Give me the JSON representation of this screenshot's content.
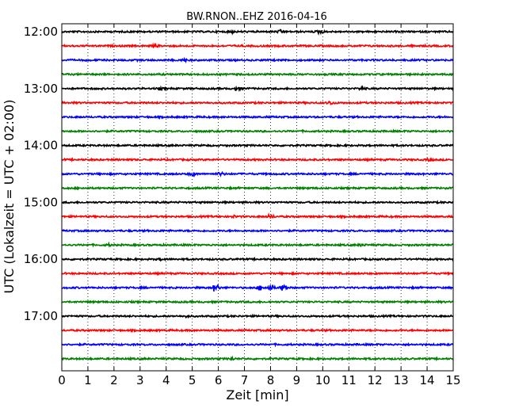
{
  "chart_data": {
    "type": "line",
    "title": "BW.RNON..EHZ 2016-04-16",
    "xlabel": "Zeit  [min]",
    "ylabel": "UTC (Lokalzeit = UTC + 02:00)",
    "xlim": [
      0,
      15
    ],
    "x_ticks": [
      0,
      1,
      2,
      3,
      4,
      5,
      6,
      7,
      8,
      9,
      10,
      11,
      12,
      13,
      14,
      15
    ],
    "x_tick_labels": [
      "0",
      "1",
      "2",
      "3",
      "4",
      "5",
      "6",
      "7",
      "8",
      "9",
      "10",
      "11",
      "12",
      "13",
      "14",
      "15"
    ],
    "y_tick_labels": [
      "12:00",
      "13:00",
      "14:00",
      "15:00",
      "16:00",
      "17:00"
    ],
    "y_ticks_trace_index": [
      0,
      4,
      8,
      12,
      16,
      20
    ],
    "grid": true,
    "trace_interval_min": 15,
    "trace_colors": [
      "#000000",
      "#ff0000",
      "#0000ff",
      "#008000"
    ],
    "traces": [
      {
        "start": "12:00",
        "events": [
          {
            "x": 9.9,
            "amp": 0.35
          },
          {
            "x": 8.4,
            "amp": 0.25
          },
          {
            "x": 6.5,
            "amp": 0.2
          }
        ]
      },
      {
        "start": "12:15",
        "events": [
          {
            "x": 3.6,
            "amp": 0.2
          }
        ]
      },
      {
        "start": "12:30",
        "events": [
          {
            "x": 4.7,
            "amp": 0.2
          }
        ]
      },
      {
        "start": "12:45",
        "events": []
      },
      {
        "start": "13:00",
        "events": [
          {
            "x": 6.7,
            "amp": 0.25
          },
          {
            "x": 11.5,
            "amp": 0.25
          },
          {
            "x": 3.8,
            "amp": 0.15
          }
        ]
      },
      {
        "start": "13:15",
        "events": [
          {
            "x": 10.3,
            "amp": 0.3
          }
        ]
      },
      {
        "start": "13:30",
        "events": []
      },
      {
        "start": "13:45",
        "events": []
      },
      {
        "start": "14:00",
        "events": []
      },
      {
        "start": "14:15",
        "events": [
          {
            "x": 14.1,
            "amp": 0.2
          }
        ]
      },
      {
        "start": "14:30",
        "events": [
          {
            "x": 5.0,
            "amp": 0.3
          },
          {
            "x": 6.1,
            "amp": 0.3
          }
        ]
      },
      {
        "start": "14:45",
        "events": []
      },
      {
        "start": "15:00",
        "events": []
      },
      {
        "start": "15:15",
        "events": [
          {
            "x": 8.0,
            "amp": 0.35
          },
          {
            "x": 6.6,
            "amp": 0.15
          }
        ]
      },
      {
        "start": "15:30",
        "events": []
      },
      {
        "start": "15:45",
        "events": [
          {
            "x": 1.8,
            "amp": 0.15
          },
          {
            "x": 11.5,
            "amp": 0.15
          }
        ]
      },
      {
        "start": "16:00",
        "events": [
          {
            "x": 3.8,
            "amp": 0.15
          }
        ]
      },
      {
        "start": "16:15",
        "events": []
      },
      {
        "start": "16:30",
        "events": [
          {
            "x": 5.9,
            "amp": 0.9
          },
          {
            "x": 8.0,
            "amp": 0.7
          },
          {
            "x": 8.5,
            "amp": 0.6
          },
          {
            "x": 7.6,
            "amp": 0.4
          }
        ]
      },
      {
        "start": "16:45",
        "events": []
      },
      {
        "start": "17:00",
        "events": [
          {
            "x": 4.8,
            "amp": 0.15
          }
        ]
      },
      {
        "start": "17:15",
        "events": []
      },
      {
        "start": "17:30",
        "events": []
      },
      {
        "start": "17:45",
        "events": [
          {
            "x": 6.5,
            "amp": 0.2
          }
        ]
      }
    ]
  }
}
